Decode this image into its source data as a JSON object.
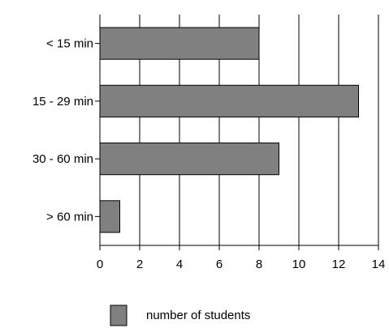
{
  "chart_data": {
    "type": "bar",
    "orientation": "horizontal",
    "categories": [
      "< 15 min",
      "15 - 29 min",
      "30 - 60 min",
      "> 60 min"
    ],
    "values": [
      8,
      13,
      9,
      1
    ],
    "series": [
      {
        "name": "number of students",
        "values": [
          8,
          13,
          9,
          1
        ]
      }
    ],
    "xlim": [
      0,
      14
    ],
    "xticks": [
      "0",
      "2",
      "4",
      "6",
      "8",
      "10",
      "12",
      "14"
    ],
    "grid": "vertical",
    "legend": "bottom",
    "bar_color": "#808080"
  }
}
